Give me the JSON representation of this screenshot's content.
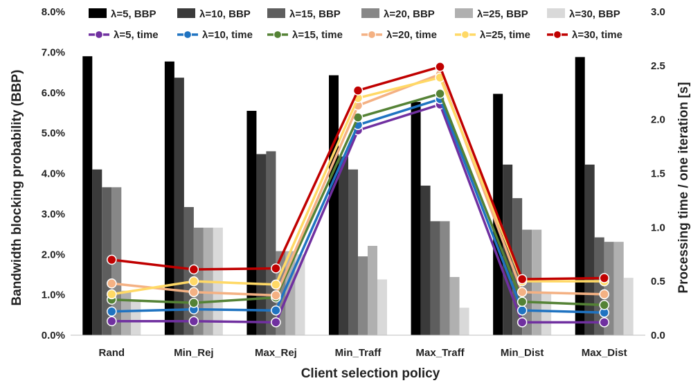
{
  "chart_data": {
    "type": "bar",
    "xlabel": "Client selection policy",
    "ylabel": "Bandwidth blocking probability (BBP)",
    "y2label": "Processing time / one iteration [s]",
    "categories": [
      "Rand",
      "Min_Rej",
      "Max_Rej",
      "Min_Traff",
      "Max_Traff",
      "Min_Dist",
      "Max_Dist"
    ],
    "ylim": [
      0,
      8
    ],
    "yticks": [
      "0.0%",
      "1.0%",
      "2.0%",
      "3.0%",
      "4.0%",
      "5.0%",
      "6.0%",
      "7.0%",
      "8.0%"
    ],
    "y2lim": [
      0,
      3
    ],
    "y2ticks": [
      "0.0",
      "0.5",
      "1.0",
      "1.5",
      "2.0",
      "2.5",
      "3.0"
    ],
    "grid": false,
    "legend": "top",
    "bar_series": [
      {
        "name": "λ=5, BBP",
        "color": "#000000",
        "values": [
          6.9,
          6.77,
          5.55,
          6.43,
          5.77,
          5.97,
          6.88
        ]
      },
      {
        "name": "λ=10, BBP",
        "color": "#3a3a3a",
        "values": [
          4.1,
          6.37,
          4.48,
          4.42,
          3.7,
          4.22,
          4.22
        ]
      },
      {
        "name": "λ=15, BBP",
        "color": "#5e5e5e",
        "values": [
          3.66,
          3.17,
          4.55,
          4.1,
          2.82,
          3.39,
          2.42
        ]
      },
      {
        "name": "λ=20, BBP",
        "color": "#878787",
        "values": [
          3.66,
          2.66,
          2.08,
          1.95,
          2.82,
          2.61,
          2.31
        ]
      },
      {
        "name": "λ=25, BBP",
        "color": "#b0b0b0",
        "values": [
          1.1,
          2.66,
          2.08,
          2.21,
          1.44,
          2.61,
          2.31
        ]
      },
      {
        "name": "λ=30, BBP",
        "color": "#d9d9d9",
        "values": [
          0.85,
          2.66,
          2.0,
          1.38,
          0.68,
          1.05,
          1.42
        ]
      }
    ],
    "line_series": [
      {
        "name": "λ=5, time",
        "color": "#7030a0",
        "values": [
          0.13,
          0.13,
          0.12,
          1.9,
          2.14,
          0.12,
          0.12
        ]
      },
      {
        "name": "λ=10, time",
        "color": "#1f73c1",
        "values": [
          0.22,
          0.24,
          0.23,
          1.95,
          2.19,
          0.23,
          0.21
        ]
      },
      {
        "name": "λ=15, time",
        "color": "#548235",
        "values": [
          0.33,
          0.3,
          0.35,
          2.02,
          2.24,
          0.31,
          0.28
        ]
      },
      {
        "name": "λ=20, time",
        "color": "#f4b183",
        "values": [
          0.48,
          0.4,
          0.37,
          2.13,
          2.42,
          0.4,
          0.38
        ]
      },
      {
        "name": "λ=25, time",
        "color": "#ffd966",
        "values": [
          0.38,
          0.5,
          0.47,
          2.2,
          2.39,
          0.5,
          0.5
        ]
      },
      {
        "name": "λ=30, time",
        "color": "#c00000",
        "values": [
          0.7,
          0.61,
          0.62,
          2.27,
          2.49,
          0.52,
          0.53
        ]
      }
    ]
  }
}
